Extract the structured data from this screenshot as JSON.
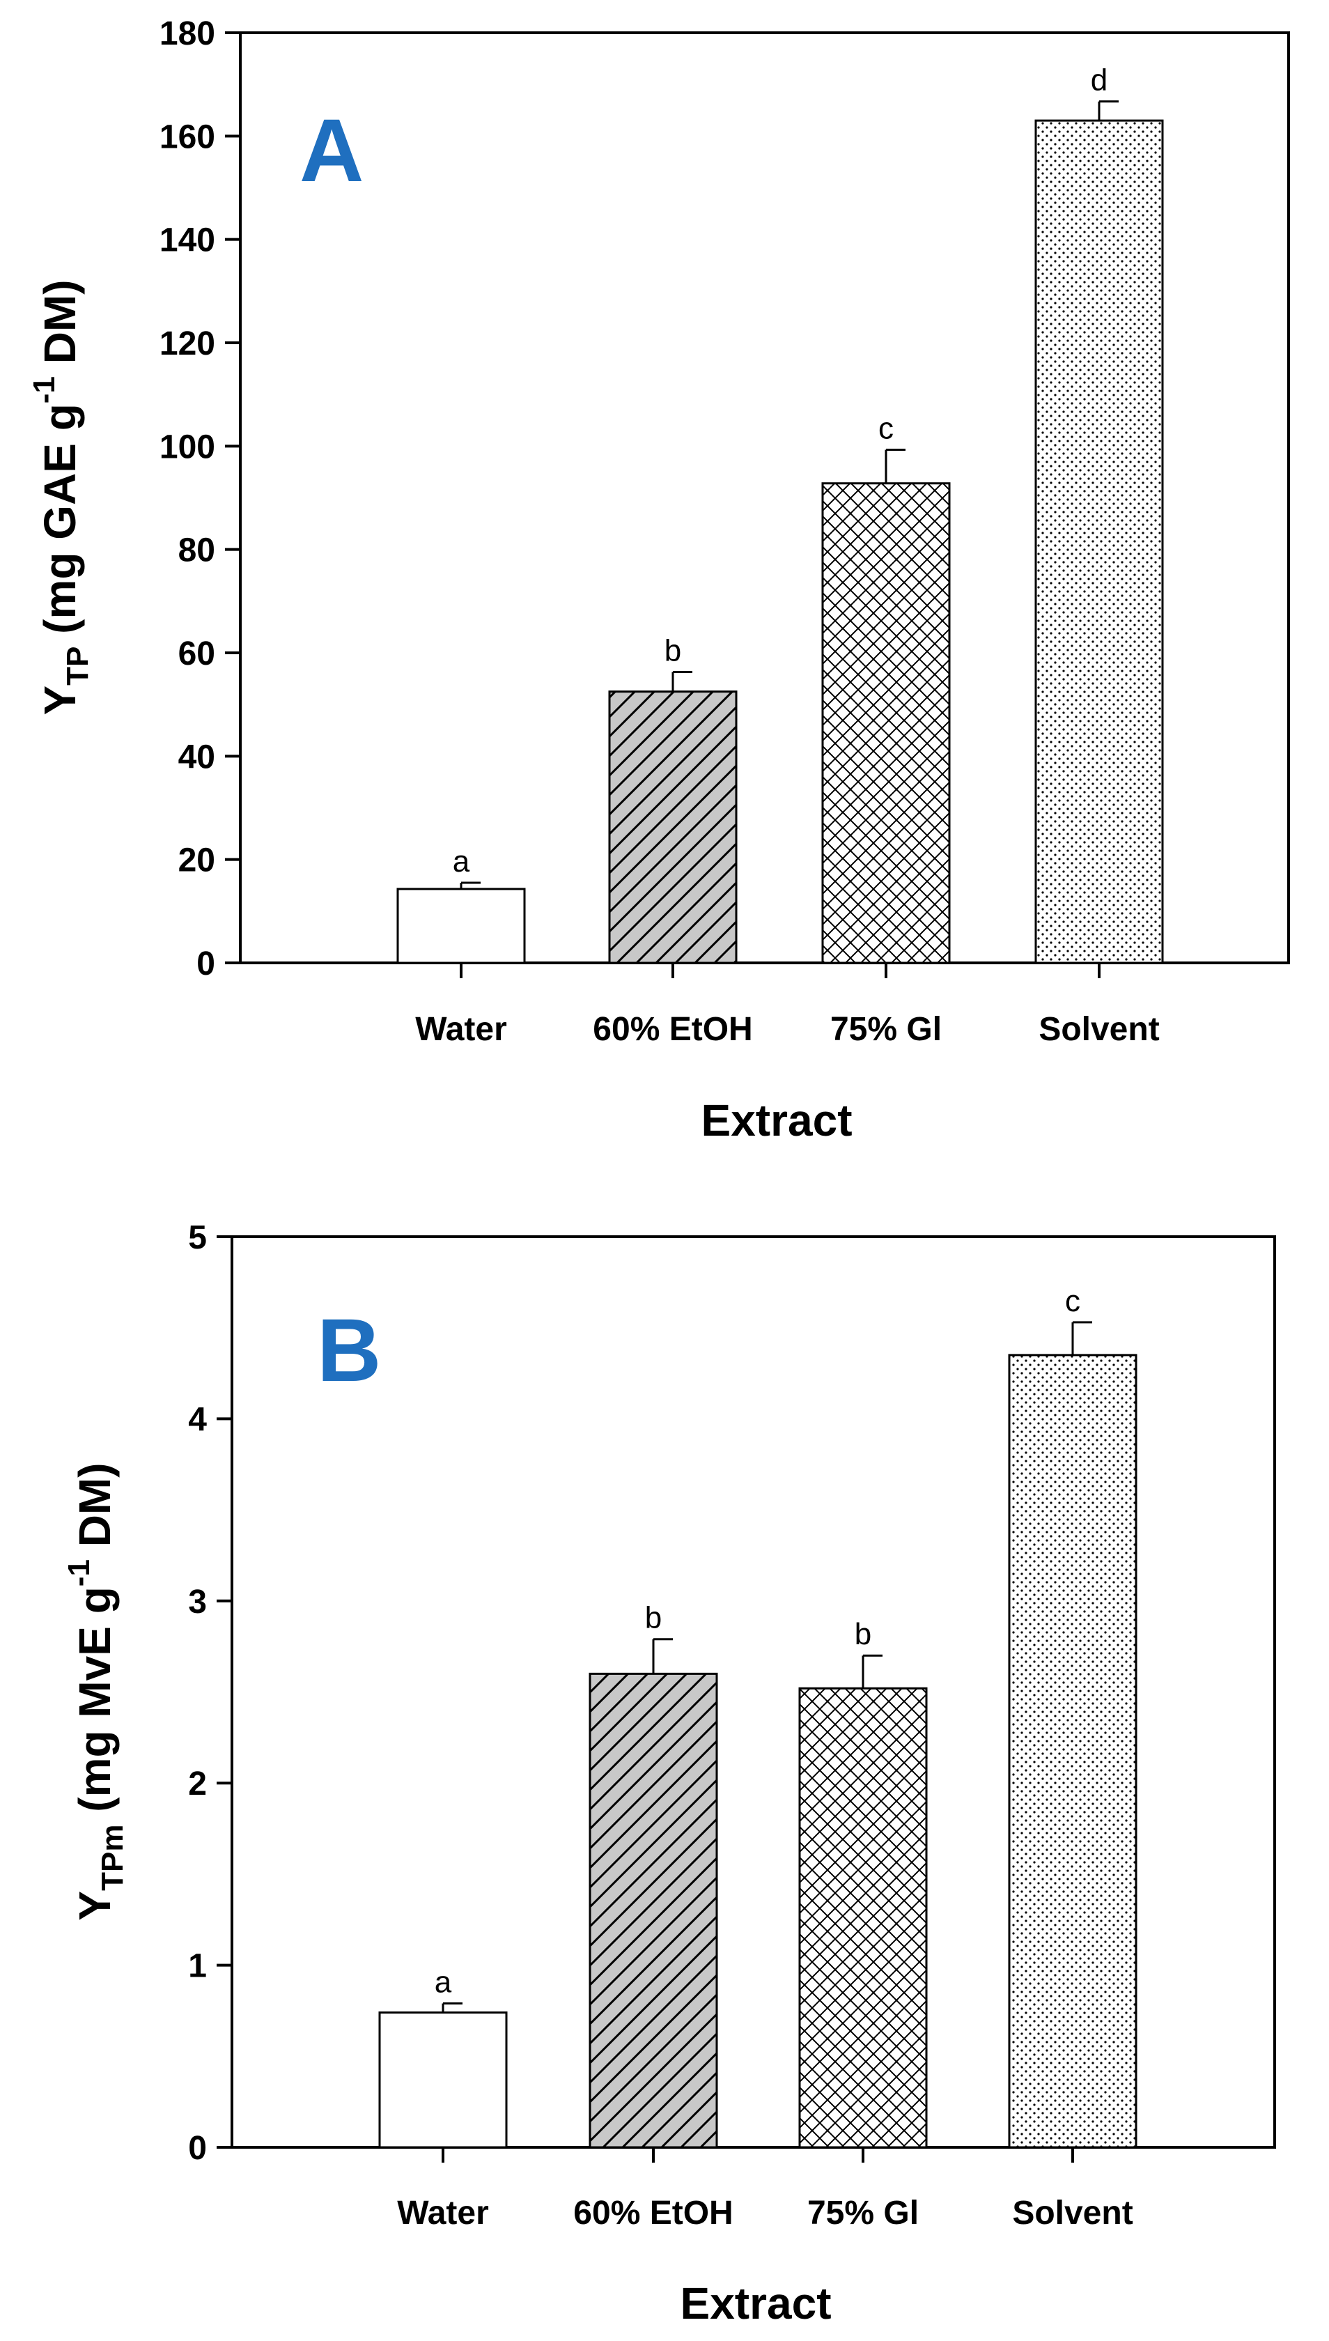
{
  "chart_data": [
    {
      "type": "bar",
      "panel_label": "A",
      "categories": [
        "Water",
        "60% EtOH",
        "75% Gl",
        "Solvent"
      ],
      "values": [
        14.3,
        52.5,
        92.8,
        163.0
      ],
      "errors": [
        1.2,
        3.8,
        6.5,
        3.7
      ],
      "significance": [
        "a",
        "b",
        "c",
        "d"
      ],
      "xlabel": "Extract",
      "ylabel": {
        "main": "Y",
        "sub": "TP",
        "rest_a": " (mg GAE g",
        "sup": "-1",
        "rest_b": " DM)"
      },
      "ylim": [
        0,
        180
      ],
      "yticks": [
        0,
        20,
        40,
        60,
        80,
        100,
        120,
        140,
        160,
        180
      ],
      "bar_fills": [
        "plain",
        "hatch",
        "crosshatch",
        "dots"
      ]
    },
    {
      "type": "bar",
      "panel_label": "B",
      "categories": [
        "Water",
        "60% EtOH",
        "75% Gl",
        "Solvent"
      ],
      "values": [
        0.74,
        2.6,
        2.52,
        4.35
      ],
      "errors": [
        0.05,
        0.19,
        0.18,
        0.18
      ],
      "significance": [
        "a",
        "b",
        "b",
        "c"
      ],
      "xlabel": "Extract",
      "ylabel": {
        "main": "Y",
        "sub": "TPm",
        "rest_a": " (mg MvE g",
        "sup": "-1",
        "rest_b": " DM)"
      },
      "ylim": [
        0,
        5
      ],
      "yticks": [
        0,
        1,
        2,
        3,
        4,
        5
      ],
      "bar_fills": [
        "plain",
        "hatch",
        "crosshatch",
        "dots"
      ]
    }
  ]
}
